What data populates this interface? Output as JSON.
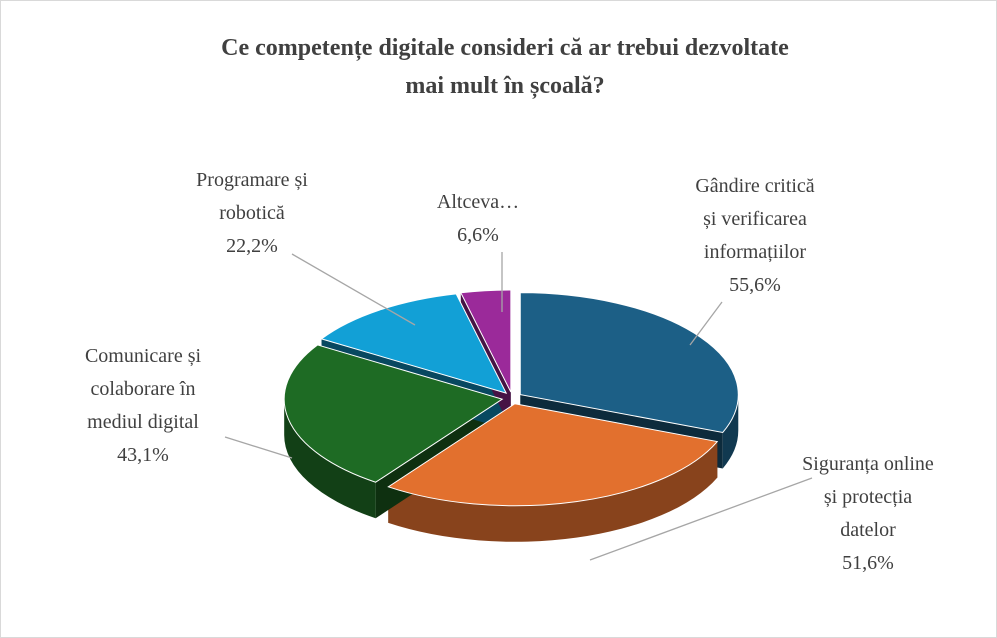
{
  "chart_data": {
    "type": "pie3d",
    "title": "Ce competențe digitale consideri că ar trebui dezvoltate\nmai mult în școală?",
    "categories": [
      "Gândire critică\nși verificarea\ninformațiilor",
      "Siguranța online\nși protecția\ndatelor",
      "Comunicare și\ncolaborare în\nmediul digital",
      "Programare și\nrobotică",
      "Altceva…"
    ],
    "values": [
      55.6,
      51.6,
      43.1,
      22.2,
      6.6
    ],
    "value_labels": [
      "55,6%",
      "51,6%",
      "43,1%",
      "22,2%",
      "6,6%"
    ],
    "colors": [
      "#1c5f86",
      "#e2702e",
      "#1e6b24",
      "#12a0d6",
      "#9b2a9a"
    ]
  }
}
